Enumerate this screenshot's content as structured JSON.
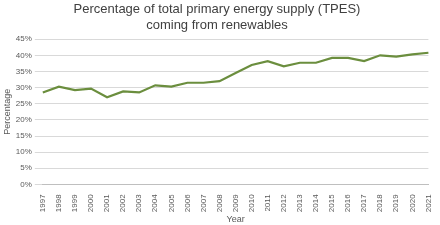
{
  "chart_data": {
    "type": "line",
    "title": [
      "Percentage of total primary energy supply (TPES)",
      "coming from renewables"
    ],
    "x_label": "Year",
    "y_label": "Percentage",
    "categories": [
      "1997",
      "1998",
      "1999",
      "2000",
      "2001",
      "2002",
      "2003",
      "2004",
      "2005",
      "2006",
      "2007",
      "2008",
      "2009",
      "2010",
      "2011",
      "2012",
      "2013",
      "2014",
      "2015",
      "2016",
      "2017",
      "2018",
      "2019",
      "2020",
      "2021"
    ],
    "values": [
      28.5,
      30.3,
      29.2,
      29.7,
      27.0,
      28.8,
      28.5,
      30.7,
      30.3,
      31.5,
      31.5,
      32.0,
      34.5,
      37.0,
      38.2,
      36.6,
      37.7,
      37.7,
      39.2,
      39.2,
      38.2,
      40.0,
      39.6,
      40.3,
      40.8
    ],
    "color": "#6b8e3e",
    "ylim": [
      0,
      45
    ],
    "yticks": [
      {
        "value": 0,
        "label": "0%"
      },
      {
        "value": 5,
        "label": "5%"
      },
      {
        "value": 10,
        "label": "10%"
      },
      {
        "value": 15,
        "label": "15%"
      },
      {
        "value": 20,
        "label": "20%"
      },
      {
        "value": 25,
        "label": "25%"
      },
      {
        "value": 30,
        "label": "30%"
      },
      {
        "value": 35,
        "label": "35%"
      },
      {
        "value": 40,
        "label": "40%"
      },
      {
        "value": 45,
        "label": "45%"
      }
    ],
    "grid": true
  }
}
